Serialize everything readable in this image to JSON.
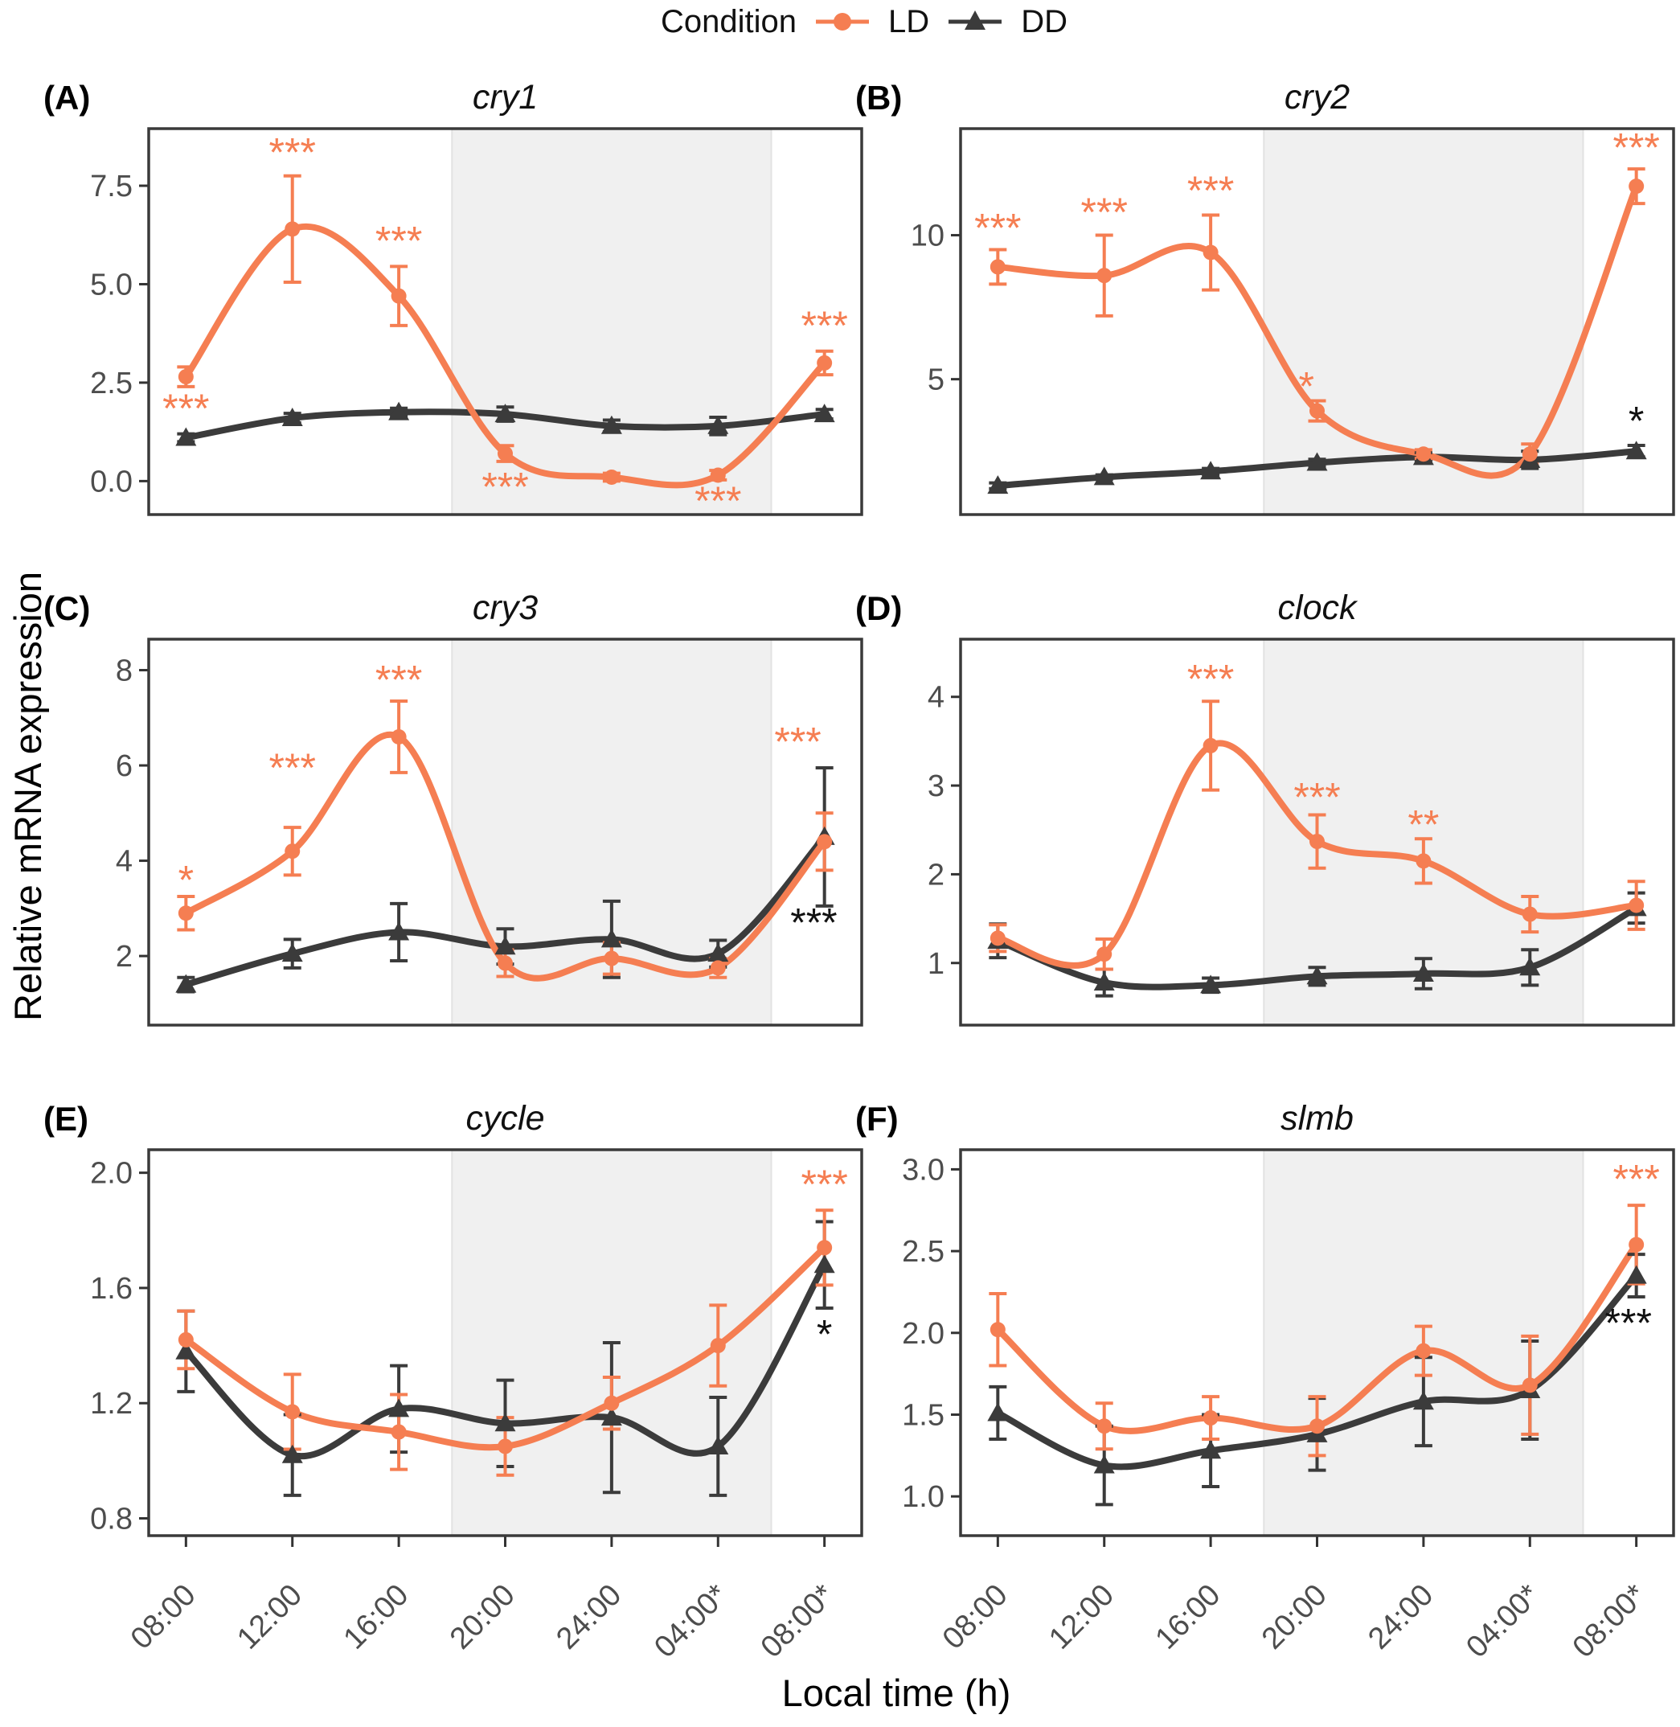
{
  "legend": {
    "title": "Condition",
    "items": [
      {
        "label": "LD",
        "marker": "circle-icon"
      },
      {
        "label": "DD",
        "marker": "triangle-icon"
      }
    ]
  },
  "axis": {
    "y_label": "Relative mRNA expression",
    "x_label": "Local time (h)"
  },
  "chart_data": {
    "type": "line",
    "colors": {
      "ld": "#F57E52",
      "dd": "#3B3B3B",
      "night": "#F0F0F0",
      "night_edge": "#E2E2E2",
      "border": "#3A3A3A",
      "tick": "#333333",
      "tick_label": "#4D4D4D",
      "black_annotation": "#111111"
    },
    "x": {
      "hours": [
        8,
        12,
        16,
        20,
        24,
        28,
        32
      ],
      "tick_labels": [
        "08:00",
        "12:00",
        "16:00",
        "20:00",
        "24:00",
        "04:00*",
        "08:00*"
      ],
      "xlim": [
        6.6,
        33.4
      ],
      "night_band": [
        18,
        30
      ]
    },
    "panels": [
      {
        "tag": "(A)",
        "title": "cry1",
        "ylim": [
          -0.85,
          8.95
        ],
        "yticks": [
          0,
          2.5,
          5,
          7.5
        ],
        "ytick_labels": [
          "0.0",
          "2.5",
          "5.0",
          "7.5"
        ],
        "ld": {
          "values": [
            2.65,
            6.4,
            4.7,
            0.7,
            0.1,
            0.15,
            3.0
          ],
          "errors": [
            0.25,
            1.35,
            0.75,
            0.2,
            0.1,
            0.12,
            0.3
          ]
        },
        "dd": {
          "values": [
            1.1,
            1.6,
            1.75,
            1.7,
            1.4,
            1.4,
            1.7
          ],
          "errors": [
            0.1,
            0.12,
            0.1,
            0.18,
            0.15,
            0.22,
            0.12
          ]
        },
        "annotations": [
          {
            "series": "ld",
            "x": 8,
            "y": 1.85,
            "text": "***"
          },
          {
            "series": "ld",
            "x": 12,
            "y": 8.35,
            "text": "***"
          },
          {
            "series": "ld",
            "x": 16,
            "y": 6.1,
            "text": "***"
          },
          {
            "series": "ld",
            "x": 20,
            "y": -0.15,
            "text": "***"
          },
          {
            "series": "ld",
            "x": 28,
            "y": -0.5,
            "text": "***"
          },
          {
            "series": "ld",
            "x": 32,
            "y": 3.95,
            "text": "***"
          }
        ]
      },
      {
        "tag": "(B)",
        "title": "cry2",
        "ylim": [
          0.3,
          13.7
        ],
        "yticks": [
          5,
          10
        ],
        "ytick_labels": [
          "5",
          "10"
        ],
        "ld": {
          "values": [
            8.9,
            8.6,
            9.4,
            3.9,
            2.4,
            2.4,
            11.7
          ],
          "errors": [
            0.6,
            1.4,
            1.3,
            0.35,
            0.15,
            0.35,
            0.6
          ]
        },
        "dd": {
          "values": [
            1.3,
            1.6,
            1.8,
            2.1,
            2.3,
            2.2,
            2.5
          ],
          "errors": [
            0.1,
            0.08,
            0.1,
            0.12,
            0.15,
            0.3,
            0.2
          ]
        },
        "annotations": [
          {
            "series": "ld",
            "x": 8,
            "y": 10.25,
            "text": "***"
          },
          {
            "series": "ld",
            "x": 12,
            "y": 10.8,
            "text": "***"
          },
          {
            "series": "ld",
            "x": 16,
            "y": 11.55,
            "text": "***"
          },
          {
            "series": "ld",
            "x": 19.6,
            "y": 4.75,
            "text": "*"
          },
          {
            "series": "ld",
            "x": 32,
            "y": 13.05,
            "text": "***"
          },
          {
            "series": "dd",
            "x": 32,
            "y": 3.55,
            "text": "*"
          }
        ]
      },
      {
        "tag": "(C)",
        "title": "cry3",
        "ylim": [
          0.55,
          8.65
        ],
        "yticks": [
          2,
          4,
          6,
          8
        ],
        "ytick_labels": [
          "2",
          "4",
          "6",
          "8"
        ],
        "ld": {
          "values": [
            2.9,
            4.2,
            6.6,
            1.85,
            1.95,
            1.75,
            4.4
          ],
          "errors": [
            0.35,
            0.5,
            0.75,
            0.28,
            0.33,
            0.2,
            0.6
          ]
        },
        "dd": {
          "values": [
            1.4,
            2.05,
            2.5,
            2.2,
            2.35,
            2.05,
            4.5
          ],
          "errors": [
            0.15,
            0.3,
            0.6,
            0.37,
            0.8,
            0.28,
            1.45
          ]
        },
        "annotations": [
          {
            "series": "ld",
            "x": 8,
            "y": 3.6,
            "text": "*"
          },
          {
            "series": "ld",
            "x": 12,
            "y": 5.95,
            "text": "***"
          },
          {
            "series": "ld",
            "x": 16,
            "y": 7.8,
            "text": "***"
          },
          {
            "series": "ld",
            "x": 31,
            "y": 6.5,
            "text": "***"
          },
          {
            "series": "dd",
            "x": 31.6,
            "y": 2.7,
            "text": "***"
          }
        ]
      },
      {
        "tag": "(D)",
        "title": "clock",
        "ylim": [
          0.3,
          4.65
        ],
        "yticks": [
          1,
          2,
          3,
          4
        ],
        "ytick_labels": [
          "1",
          "2",
          "3",
          "4"
        ],
        "ld": {
          "values": [
            1.28,
            1.1,
            3.45,
            2.37,
            2.15,
            1.55,
            1.65
          ],
          "errors": [
            0.15,
            0.17,
            0.5,
            0.3,
            0.25,
            0.2,
            0.27
          ]
        },
        "dd": {
          "values": [
            1.25,
            0.78,
            0.75,
            0.85,
            0.88,
            0.95,
            1.62
          ],
          "errors": [
            0.19,
            0.15,
            0.08,
            0.1,
            0.17,
            0.2,
            0.17
          ]
        },
        "annotations": [
          {
            "series": "ld",
            "x": 16,
            "y": 4.2,
            "text": "***"
          },
          {
            "series": "ld",
            "x": 20,
            "y": 2.87,
            "text": "***"
          },
          {
            "series": "ld",
            "x": 24,
            "y": 2.56,
            "text": "**"
          }
        ]
      },
      {
        "tag": "(E)",
        "title": "cycle",
        "ylim": [
          0.74,
          2.08
        ],
        "yticks": [
          0.8,
          1.2,
          1.6,
          2.0
        ],
        "ytick_labels": [
          "0.8",
          "1.2",
          "1.6",
          "2.0"
        ],
        "ld": {
          "values": [
            1.42,
            1.17,
            1.1,
            1.05,
            1.2,
            1.4,
            1.74
          ],
          "errors": [
            0.1,
            0.13,
            0.13,
            0.1,
            0.09,
            0.14,
            0.13
          ]
        },
        "dd": {
          "values": [
            1.38,
            1.02,
            1.18,
            1.13,
            1.15,
            1.05,
            1.68
          ],
          "errors": [
            0.14,
            0.14,
            0.15,
            0.15,
            0.26,
            0.17,
            0.15
          ]
        },
        "annotations": [
          {
            "series": "ld",
            "x": 32,
            "y": 1.96,
            "text": "***"
          },
          {
            "series": "dd",
            "x": 32,
            "y": 1.44,
            "text": "*"
          }
        ]
      },
      {
        "tag": "(F)",
        "title": "slmb",
        "ylim": [
          0.76,
          3.12
        ],
        "yticks": [
          1.0,
          1.5,
          2.0,
          2.5,
          3.0
        ],
        "ytick_labels": [
          "1.0",
          "1.5",
          "2.0",
          "2.5",
          "3.0"
        ],
        "ld": {
          "values": [
            2.02,
            1.43,
            1.48,
            1.43,
            1.89,
            1.68,
            2.54
          ],
          "errors": [
            0.22,
            0.14,
            0.13,
            0.18,
            0.15,
            0.3,
            0.24
          ]
        },
        "dd": {
          "values": [
            1.51,
            1.19,
            1.28,
            1.38,
            1.58,
            1.65,
            2.35
          ],
          "errors": [
            0.16,
            0.24,
            0.22,
            0.22,
            0.27,
            0.3,
            0.13
          ]
        },
        "annotations": [
          {
            "series": "ld",
            "x": 32,
            "y": 2.94,
            "text": "***"
          },
          {
            "series": "dd",
            "x": 31.7,
            "y": 2.06,
            "text": "***"
          }
        ]
      }
    ]
  }
}
